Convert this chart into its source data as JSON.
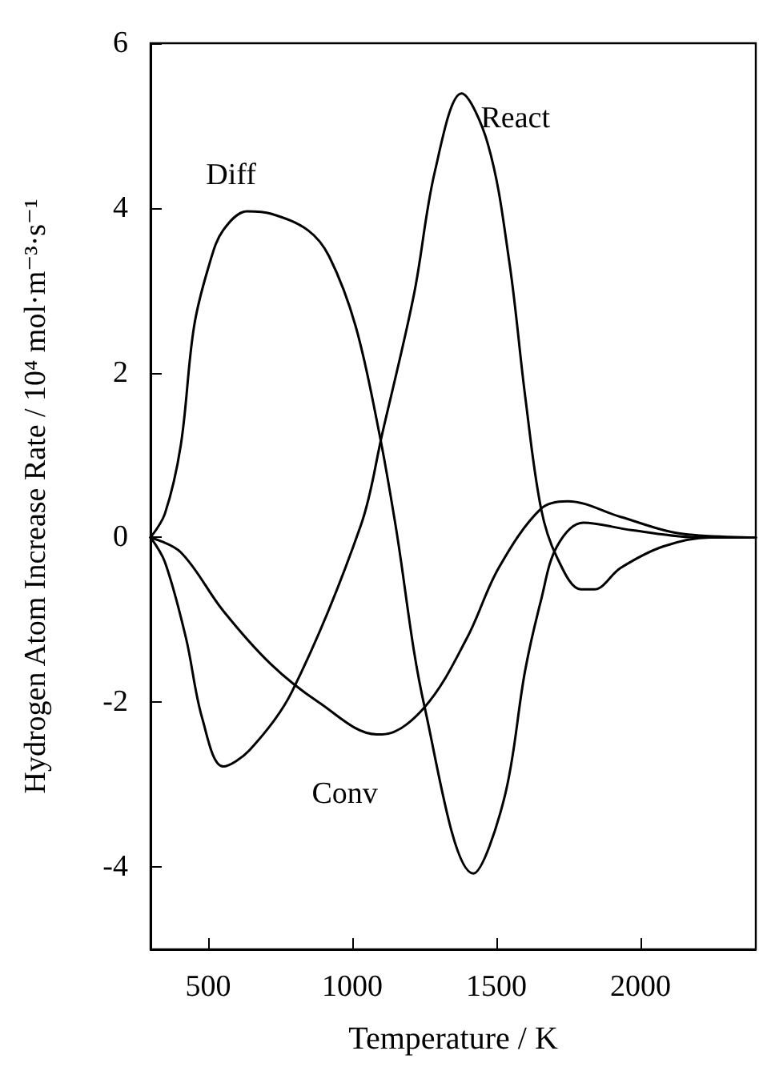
{
  "chart_data": {
    "type": "line",
    "xlabel": "Temperature / K",
    "ylabel": "Hydrogen Atom Increase Rate / 10⁴ mol·m⁻³·s⁻¹",
    "xlim": [
      300,
      2400
    ],
    "xticks": [
      500,
      1000,
      1500,
      2000
    ],
    "ylim": [
      -5,
      6
    ],
    "yticks": [
      -4,
      -2,
      0,
      2,
      4,
      6
    ],
    "grid": false,
    "marker": "none",
    "line_style": "solid",
    "series": [
      {
        "name": "Diff",
        "color": "#000000",
        "x": [
          300,
          350,
          405,
          451,
          506,
          552,
          635,
          718,
          846,
          920,
          1012,
          1094,
          1150,
          1251,
          1420,
          1527,
          1600,
          1655,
          1710,
          1802,
          1968,
          2207,
          2400
        ],
        "values": [
          0,
          0.29,
          1.12,
          2.56,
          3.34,
          3.73,
          3.96,
          3.93,
          3.73,
          3.41,
          2.56,
          1.26,
          0.15,
          -2.06,
          -4.08,
          -3.17,
          -1.61,
          -0.76,
          -0.11,
          0.18,
          0.09,
          0,
          0
        ]
      },
      {
        "name": "React",
        "color": "#000000",
        "x": [
          300,
          350,
          423,
          479,
          552,
          644,
          791,
          1030,
          1104,
          1214,
          1287,
          1379,
          1471,
          1545,
          1600,
          1655,
          1710,
          1793,
          1839,
          1931,
          2078,
          2240,
          2400
        ],
        "values": [
          0,
          -0.3,
          -1.22,
          -2.19,
          -2.78,
          -2.58,
          -1.87,
          0.15,
          1.26,
          2.95,
          4.45,
          5.39,
          4.77,
          3.34,
          1.71,
          0.35,
          -0.24,
          -0.63,
          -0.63,
          -0.37,
          -0.11,
          0,
          0
        ]
      },
      {
        "name": "Conv",
        "color": "#000000",
        "x": [
          300,
          405,
          552,
          718,
          883,
          1085,
          1104,
          1251,
          1398,
          1508,
          1655,
          1747,
          1931,
          2133,
          2400
        ],
        "values": [
          0,
          -0.18,
          -0.89,
          -1.54,
          -2.0,
          -2.39,
          -2.39,
          -2.06,
          -1.22,
          -0.37,
          0.35,
          0.44,
          0.25,
          0.05,
          0
        ]
      }
    ]
  }
}
